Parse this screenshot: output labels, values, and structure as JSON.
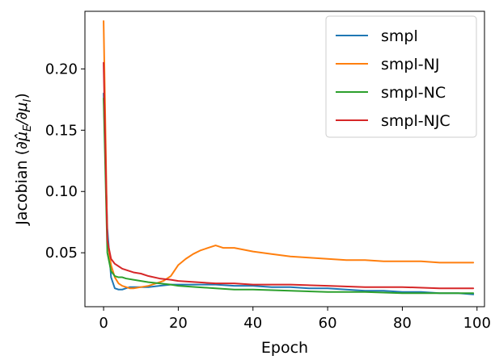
{
  "chart_data": {
    "type": "line",
    "title": "",
    "xlabel": "Epoch",
    "ylabel": "Jacobian (∂μ̂_E/∂μ_I)",
    "xlim": [
      -5,
      102
    ],
    "ylim": [
      0.006,
      0.247
    ],
    "xticks": [
      0,
      20,
      40,
      60,
      80,
      100
    ],
    "yticks": [
      0.05,
      0.1,
      0.15,
      0.2
    ],
    "grid": false,
    "legend_position": "top-right",
    "series": [
      {
        "name": "smpl",
        "color": "#1f77b4",
        "x": [
          0,
          1,
          2,
          3,
          4,
          5,
          6,
          7,
          8,
          10,
          12,
          15,
          18,
          20,
          25,
          30,
          35,
          40,
          45,
          50,
          55,
          60,
          65,
          70,
          75,
          80,
          85,
          90,
          95,
          99
        ],
        "y": [
          0.18,
          0.07,
          0.03,
          0.021,
          0.02,
          0.02,
          0.021,
          0.022,
          0.022,
          0.022,
          0.022,
          0.023,
          0.024,
          0.024,
          0.024,
          0.024,
          0.023,
          0.023,
          0.022,
          0.022,
          0.021,
          0.021,
          0.02,
          0.019,
          0.019,
          0.018,
          0.018,
          0.017,
          0.017,
          0.016
        ]
      },
      {
        "name": "smpl-NJ",
        "color": "#ff7f0e",
        "x": [
          0,
          1,
          2,
          3,
          4,
          5,
          6,
          7,
          8,
          10,
          12,
          14,
          16,
          18,
          20,
          22,
          24,
          26,
          28,
          30,
          32,
          35,
          40,
          45,
          50,
          55,
          60,
          65,
          70,
          75,
          80,
          85,
          90,
          95,
          99
        ],
        "y": [
          0.239,
          0.06,
          0.04,
          0.03,
          0.025,
          0.023,
          0.022,
          0.021,
          0.021,
          0.022,
          0.023,
          0.025,
          0.027,
          0.031,
          0.04,
          0.045,
          0.049,
          0.052,
          0.054,
          0.056,
          0.054,
          0.054,
          0.051,
          0.049,
          0.047,
          0.046,
          0.045,
          0.044,
          0.044,
          0.043,
          0.043,
          0.043,
          0.042,
          0.042,
          0.042
        ]
      },
      {
        "name": "smpl-NC",
        "color": "#2ca02c",
        "x": [
          0,
          1,
          2,
          3,
          4,
          5,
          6,
          8,
          10,
          12,
          15,
          18,
          20,
          25,
          30,
          35,
          40,
          50,
          60,
          70,
          80,
          90,
          99
        ],
        "y": [
          0.176,
          0.05,
          0.035,
          0.031,
          0.03,
          0.03,
          0.029,
          0.028,
          0.027,
          0.026,
          0.025,
          0.024,
          0.023,
          0.022,
          0.021,
          0.02,
          0.02,
          0.019,
          0.018,
          0.018,
          0.017,
          0.017,
          0.017
        ]
      },
      {
        "name": "smpl-NJC",
        "color": "#d62728",
        "x": [
          0,
          1,
          2,
          3,
          4,
          5,
          6,
          8,
          10,
          12,
          15,
          18,
          20,
          25,
          30,
          35,
          40,
          50,
          60,
          70,
          80,
          90,
          99
        ],
        "y": [
          0.205,
          0.06,
          0.045,
          0.041,
          0.039,
          0.037,
          0.036,
          0.034,
          0.033,
          0.031,
          0.029,
          0.028,
          0.027,
          0.026,
          0.025,
          0.025,
          0.024,
          0.024,
          0.023,
          0.022,
          0.022,
          0.021,
          0.021
        ]
      }
    ]
  }
}
